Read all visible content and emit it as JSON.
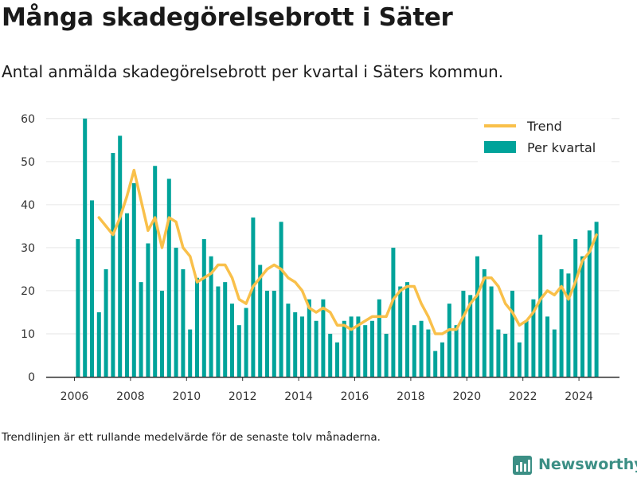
{
  "title": "Många skadegörelsebrott i Säter",
  "subtitle": "Antal anmälda skadegörelsebrott per kvartal i Säters kommun.",
  "note": "Trendlinjen är ett rullande medelvärde för de senaste tolv månaderna.",
  "brand": "Newsworthy",
  "colors": {
    "bars": "#00a39a",
    "trend": "#f9c04a",
    "brand": "#3c8f85"
  },
  "chart_data": {
    "type": "bar",
    "title": "",
    "xlabel": "",
    "ylabel": "",
    "ylim": [
      0,
      62
    ],
    "yticks": [
      0,
      10,
      20,
      30,
      40,
      50,
      60
    ],
    "xticks": [
      2006,
      2008,
      2010,
      2012,
      2014,
      2016,
      2018,
      2020,
      2022,
      2024
    ],
    "legend_position": "top-right",
    "grid": "horizontal",
    "start": {
      "year": 2006,
      "quarter": 1
    },
    "series": [
      {
        "name": "Per kvartal",
        "type": "bar",
        "values": [
          32,
          60,
          41,
          15,
          25,
          52,
          56,
          38,
          45,
          22,
          31,
          49,
          20,
          46,
          30,
          25,
          11,
          23,
          32,
          28,
          21,
          22,
          17,
          12,
          16,
          37,
          26,
          20,
          20,
          36,
          17,
          15,
          14,
          18,
          13,
          18,
          10,
          8,
          13,
          14,
          14,
          12,
          13,
          18,
          10,
          30,
          21,
          22,
          12,
          13,
          11,
          6,
          8,
          17,
          12,
          20,
          19,
          28,
          25,
          21,
          11,
          10,
          20,
          8,
          13,
          18,
          33,
          14,
          11,
          25,
          24,
          32,
          28,
          34,
          36
        ]
      },
      {
        "name": "Trend",
        "type": "line",
        "values": [
          null,
          null,
          null,
          37,
          35,
          33,
          37,
          42,
          48,
          41,
          34,
          37,
          30,
          37,
          36,
          30,
          28,
          22,
          23,
          24,
          26,
          26,
          23,
          18,
          17,
          21,
          23,
          25,
          26,
          25,
          23,
          22,
          20,
          16,
          15,
          16,
          15,
          12,
          12,
          11,
          12,
          13,
          14,
          14,
          14,
          18,
          20,
          21,
          21,
          17,
          14,
          10,
          10,
          11,
          11,
          14,
          17,
          19,
          23,
          23,
          21,
          17,
          15,
          12,
          13,
          15,
          18,
          20,
          19,
          21,
          18,
          22,
          27,
          29,
          33
        ]
      }
    ]
  }
}
